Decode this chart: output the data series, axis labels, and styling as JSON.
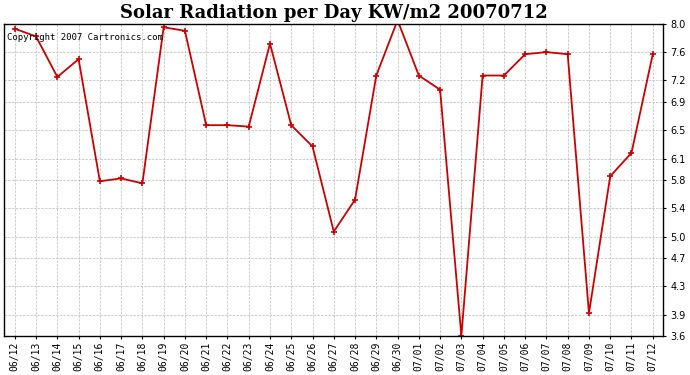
{
  "title": "Solar Radiation per Day KW/m2 20070712",
  "copyright_text": "Copyright 2007 Cartronics.com",
  "x_labels": [
    "06/12",
    "06/13",
    "06/14",
    "06/15",
    "06/16",
    "06/17",
    "06/18",
    "06/19",
    "06/20",
    "06/21",
    "06/22",
    "06/23",
    "06/24",
    "06/25",
    "06/26",
    "06/27",
    "06/28",
    "06/29",
    "06/30",
    "07/01",
    "07/02",
    "07/03",
    "07/04",
    "07/05",
    "07/06",
    "07/07",
    "07/08",
    "07/09",
    "07/10",
    "07/11",
    "07/12"
  ],
  "y_values": [
    7.93,
    7.82,
    7.25,
    7.5,
    5.78,
    5.82,
    5.75,
    7.95,
    7.9,
    6.57,
    6.57,
    6.55,
    7.72,
    6.57,
    6.27,
    5.07,
    5.52,
    7.27,
    8.05,
    7.27,
    7.07,
    3.6,
    7.27,
    7.27,
    7.57,
    7.6,
    7.57,
    3.92,
    5.85,
    6.18,
    7.57
  ],
  "line_color": "#cc0000",
  "marker": "+",
  "marker_size": 5,
  "marker_color": "#cc0000",
  "bg_color": "#ffffff",
  "grid_color": "#bbbbbb",
  "ylim": [
    3.6,
    8.0
  ],
  "yticks": [
    3.6,
    3.9,
    4.3,
    4.7,
    5.0,
    5.4,
    5.8,
    6.1,
    6.5,
    6.9,
    7.2,
    7.6,
    8.0
  ],
  "title_fontsize": 13,
  "tick_fontsize": 7,
  "copyright_fontsize": 6.5,
  "figwidth": 6.9,
  "figheight": 3.75,
  "dpi": 100
}
